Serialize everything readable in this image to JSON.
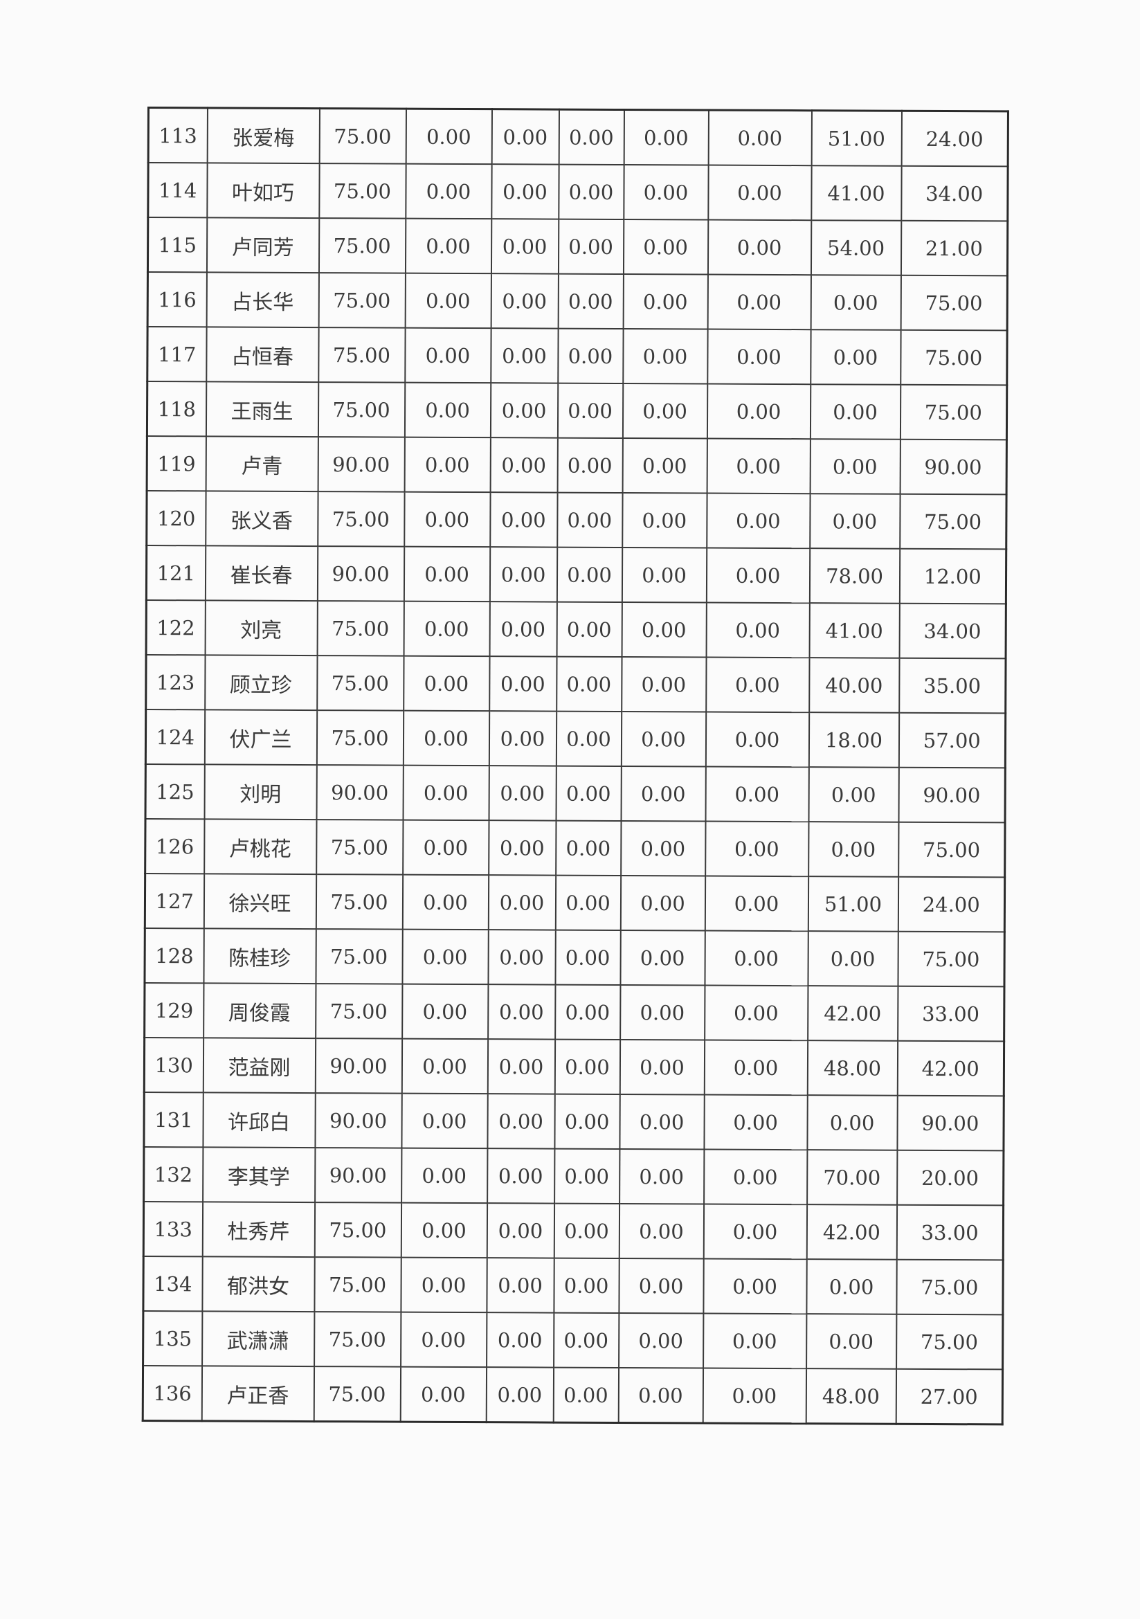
{
  "table": {
    "rows": [
      [
        "113",
        "张爱梅",
        "75.00",
        "0.00",
        "0.00",
        "0.00",
        "0.00",
        "0.00",
        "51.00",
        "24.00"
      ],
      [
        "114",
        "叶如巧",
        "75.00",
        "0.00",
        "0.00",
        "0.00",
        "0.00",
        "0.00",
        "41.00",
        "34.00"
      ],
      [
        "115",
        "卢同芳",
        "75.00",
        "0.00",
        "0.00",
        "0.00",
        "0.00",
        "0.00",
        "54.00",
        "21.00"
      ],
      [
        "116",
        "占长华",
        "75.00",
        "0.00",
        "0.00",
        "0.00",
        "0.00",
        "0.00",
        "0.00",
        "75.00"
      ],
      [
        "117",
        "占恒春",
        "75.00",
        "0.00",
        "0.00",
        "0.00",
        "0.00",
        "0.00",
        "0.00",
        "75.00"
      ],
      [
        "118",
        "王雨生",
        "75.00",
        "0.00",
        "0.00",
        "0.00",
        "0.00",
        "0.00",
        "0.00",
        "75.00"
      ],
      [
        "119",
        "卢青",
        "90.00",
        "0.00",
        "0.00",
        "0.00",
        "0.00",
        "0.00",
        "0.00",
        "90.00"
      ],
      [
        "120",
        "张义香",
        "75.00",
        "0.00",
        "0.00",
        "0.00",
        "0.00",
        "0.00",
        "0.00",
        "75.00"
      ],
      [
        "121",
        "崔长春",
        "90.00",
        "0.00",
        "0.00",
        "0.00",
        "0.00",
        "0.00",
        "78.00",
        "12.00"
      ],
      [
        "122",
        "刘亮",
        "75.00",
        "0.00",
        "0.00",
        "0.00",
        "0.00",
        "0.00",
        "41.00",
        "34.00"
      ],
      [
        "123",
        "顾立珍",
        "75.00",
        "0.00",
        "0.00",
        "0.00",
        "0.00",
        "0.00",
        "40.00",
        "35.00"
      ],
      [
        "124",
        "伏广兰",
        "75.00",
        "0.00",
        "0.00",
        "0.00",
        "0.00",
        "0.00",
        "18.00",
        "57.00"
      ],
      [
        "125",
        "刘明",
        "90.00",
        "0.00",
        "0.00",
        "0.00",
        "0.00",
        "0.00",
        "0.00",
        "90.00"
      ],
      [
        "126",
        "卢桃花",
        "75.00",
        "0.00",
        "0.00",
        "0.00",
        "0.00",
        "0.00",
        "0.00",
        "75.00"
      ],
      [
        "127",
        "徐兴旺",
        "75.00",
        "0.00",
        "0.00",
        "0.00",
        "0.00",
        "0.00",
        "51.00",
        "24.00"
      ],
      [
        "128",
        "陈桂珍",
        "75.00",
        "0.00",
        "0.00",
        "0.00",
        "0.00",
        "0.00",
        "0.00",
        "75.00"
      ],
      [
        "129",
        "周俊霞",
        "75.00",
        "0.00",
        "0.00",
        "0.00",
        "0.00",
        "0.00",
        "42.00",
        "33.00"
      ],
      [
        "130",
        "范益刚",
        "90.00",
        "0.00",
        "0.00",
        "0.00",
        "0.00",
        "0.00",
        "48.00",
        "42.00"
      ],
      [
        "131",
        "许邱白",
        "90.00",
        "0.00",
        "0.00",
        "0.00",
        "0.00",
        "0.00",
        "0.00",
        "90.00"
      ],
      [
        "132",
        "李其学",
        "90.00",
        "0.00",
        "0.00",
        "0.00",
        "0.00",
        "0.00",
        "70.00",
        "20.00"
      ],
      [
        "133",
        "杜秀芹",
        "75.00",
        "0.00",
        "0.00",
        "0.00",
        "0.00",
        "0.00",
        "42.00",
        "33.00"
      ],
      [
        "134",
        "郁洪女",
        "75.00",
        "0.00",
        "0.00",
        "0.00",
        "0.00",
        "0.00",
        "0.00",
        "75.00"
      ],
      [
        "135",
        "武潇潇",
        "75.00",
        "0.00",
        "0.00",
        "0.00",
        "0.00",
        "0.00",
        "0.00",
        "75.00"
      ],
      [
        "136",
        "卢正香",
        "75.00",
        "0.00",
        "0.00",
        "0.00",
        "0.00",
        "0.00",
        "48.00",
        "27.00"
      ]
    ]
  }
}
